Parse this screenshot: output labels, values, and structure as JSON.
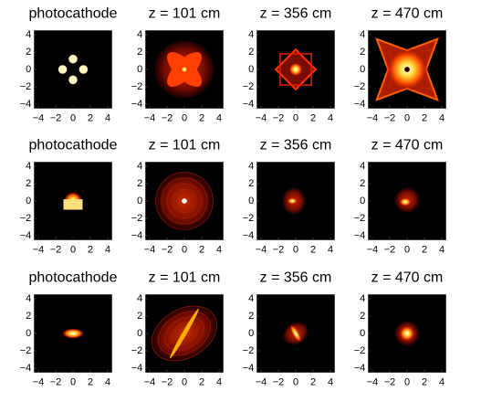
{
  "chart_data": [
    {
      "type": "image",
      "title": "photocathode",
      "xlim": [
        -4.5,
        4.5
      ],
      "ylim": [
        -4.5,
        4.5
      ],
      "xticks": [
        {
          "value": -4,
          "label": "−4"
        },
        {
          "value": -2,
          "label": "−2"
        },
        0,
        2,
        4
      ],
      "yticks": [
        {
          "value": -4,
          "label": "−4"
        },
        {
          "value": -2,
          "label": "−2"
        },
        0,
        2,
        4
      ]
    },
    {
      "type": "image",
      "title": "z = 101 cm",
      "xlim": [
        -4.5,
        4.5
      ],
      "ylim": [
        -4.5,
        4.5
      ],
      "xticks": [
        {
          "value": -4,
          "label": "−4"
        },
        {
          "value": -2,
          "label": "−2"
        },
        0,
        2,
        4
      ],
      "yticks": [
        {
          "value": -4,
          "label": "−4"
        },
        {
          "value": -2,
          "label": "−2"
        },
        0,
        2,
        4
      ]
    },
    {
      "type": "image",
      "title": "z = 356 cm",
      "xlim": [
        -4.5,
        4.5
      ],
      "ylim": [
        -4.5,
        4.5
      ],
      "xticks": [
        {
          "value": -4,
          "label": "−4"
        },
        {
          "value": -2,
          "label": "−2"
        },
        0,
        2,
        4
      ],
      "yticks": [
        {
          "value": -4,
          "label": "−4"
        },
        {
          "value": -2,
          "label": "−2"
        },
        0,
        2,
        4
      ]
    },
    {
      "type": "image",
      "title": "z = 470 cm",
      "xlim": [
        -4.5,
        4.5
      ],
      "ylim": [
        -4.5,
        4.5
      ],
      "xticks": [
        {
          "value": -4,
          "label": "−4"
        },
        {
          "value": -2,
          "label": "−2"
        },
        0,
        2,
        4
      ],
      "yticks": [
        {
          "value": -4,
          "label": "−4"
        },
        {
          "value": -2,
          "label": "−2"
        },
        0,
        2,
        4
      ]
    },
    {
      "type": "image",
      "title": "photocathode",
      "xlim": [
        -4.5,
        4.5
      ],
      "ylim": [
        -4.5,
        4.5
      ],
      "xticks": [
        {
          "value": -4,
          "label": "−4"
        },
        {
          "value": -2,
          "label": "−2"
        },
        0,
        2,
        4
      ],
      "yticks": [
        {
          "value": -4,
          "label": "−4"
        },
        {
          "value": -2,
          "label": "−2"
        },
        0,
        2,
        4
      ]
    },
    {
      "type": "image",
      "title": "z = 101 cm",
      "xlim": [
        -4.5,
        4.5
      ],
      "ylim": [
        -4.5,
        4.5
      ],
      "xticks": [
        {
          "value": -4,
          "label": "−4"
        },
        {
          "value": -2,
          "label": "−2"
        },
        0,
        2,
        4
      ],
      "yticks": [
        {
          "value": -4,
          "label": "−4"
        },
        {
          "value": -2,
          "label": "−2"
        },
        0,
        2,
        4
      ]
    },
    {
      "type": "image",
      "title": "z = 356 cm",
      "xlim": [
        -4.5,
        4.5
      ],
      "ylim": [
        -4.5,
        4.5
      ],
      "xticks": [
        {
          "value": -4,
          "label": "−4"
        },
        {
          "value": -2,
          "label": "−2"
        },
        0,
        2,
        4
      ],
      "yticks": [
        {
          "value": -4,
          "label": "−4"
        },
        {
          "value": -2,
          "label": "−2"
        },
        0,
        2,
        4
      ]
    },
    {
      "type": "image",
      "title": "z = 470 cm",
      "xlim": [
        -4.5,
        4.5
      ],
      "ylim": [
        -4.5,
        4.5
      ],
      "xticks": [
        {
          "value": -4,
          "label": "−4"
        },
        {
          "value": -2,
          "label": "−2"
        },
        0,
        2,
        4
      ],
      "yticks": [
        {
          "value": -4,
          "label": "−4"
        },
        {
          "value": -2,
          "label": "−2"
        },
        0,
        2,
        4
      ]
    },
    {
      "type": "image",
      "title": "photocathode",
      "xlim": [
        -4.5,
        4.5
      ],
      "ylim": [
        -4.5,
        4.5
      ],
      "xticks": [
        {
          "value": -4,
          "label": "−4"
        },
        {
          "value": -2,
          "label": "−2"
        },
        0,
        2,
        4
      ],
      "yticks": [
        {
          "value": -4,
          "label": "−4"
        },
        {
          "value": -2,
          "label": "−2"
        },
        0,
        2,
        4
      ]
    },
    {
      "type": "image",
      "title": "z = 101 cm",
      "xlim": [
        -4.5,
        4.5
      ],
      "ylim": [
        -4.5,
        4.5
      ],
      "xticks": [
        {
          "value": -4,
          "label": "−4"
        },
        {
          "value": -2,
          "label": "−2"
        },
        0,
        2,
        4
      ],
      "yticks": [
        {
          "value": -4,
          "label": "−4"
        },
        {
          "value": -2,
          "label": "−2"
        },
        0,
        2,
        4
      ]
    },
    {
      "type": "image",
      "title": "z = 356 cm",
      "xlim": [
        -4.5,
        4.5
      ],
      "ylim": [
        -4.5,
        4.5
      ],
      "xticks": [
        {
          "value": -4,
          "label": "−4"
        },
        {
          "value": -2,
          "label": "−2"
        },
        0,
        2,
        4
      ],
      "yticks": [
        {
          "value": -4,
          "label": "−4"
        },
        {
          "value": -2,
          "label": "−2"
        },
        0,
        2,
        4
      ]
    },
    {
      "type": "image",
      "title": "z = 470 cm",
      "xlim": [
        -4.5,
        4.5
      ],
      "ylim": [
        -4.5,
        4.5
      ],
      "xticks": [
        {
          "value": -4,
          "label": "−4"
        },
        {
          "value": -2,
          "label": "−2"
        },
        0,
        2,
        4
      ],
      "yticks": [
        {
          "value": -4,
          "label": "−4"
        },
        {
          "value": -2,
          "label": "−2"
        },
        0,
        2,
        4
      ]
    }
  ]
}
